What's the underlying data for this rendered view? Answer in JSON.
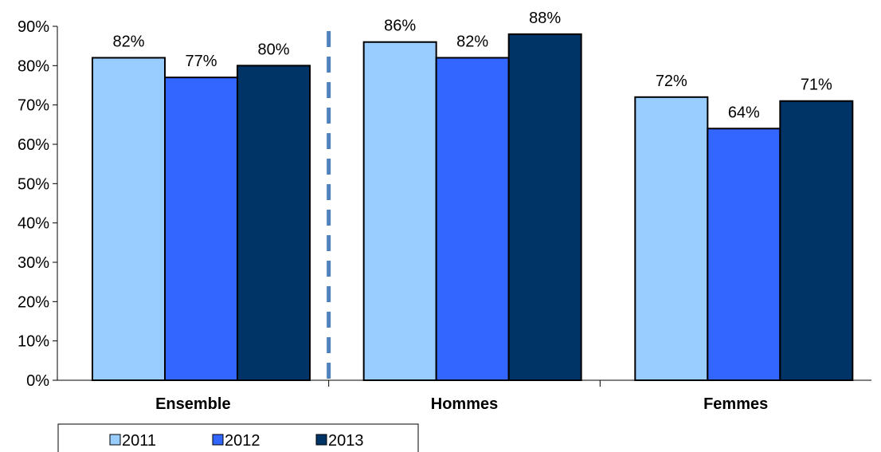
{
  "chart_data": {
    "type": "bar",
    "categories": [
      "Ensemble",
      "Hommes",
      "Femmes"
    ],
    "series": [
      {
        "name": "2011",
        "values": [
          82,
          86,
          72
        ],
        "labels": [
          "82%",
          "86%",
          "72%"
        ],
        "color": "#99ccff"
      },
      {
        "name": "2012",
        "values": [
          77,
          82,
          64
        ],
        "labels": [
          "77%",
          "82%",
          "64%"
        ],
        "color": "#3366ff"
      },
      {
        "name": "2013",
        "values": [
          80,
          88,
          71
        ],
        "labels": [
          "80%",
          "88%",
          "71%"
        ],
        "color": "#003366"
      }
    ],
    "yticks": [
      "0%",
      "10%",
      "20%",
      "30%",
      "40%",
      "50%",
      "60%",
      "70%",
      "80%",
      "90%"
    ],
    "ylim": [
      0,
      90
    ],
    "grid": false,
    "legend_position": "bottom-left",
    "separator_color": "#4f81bd"
  }
}
